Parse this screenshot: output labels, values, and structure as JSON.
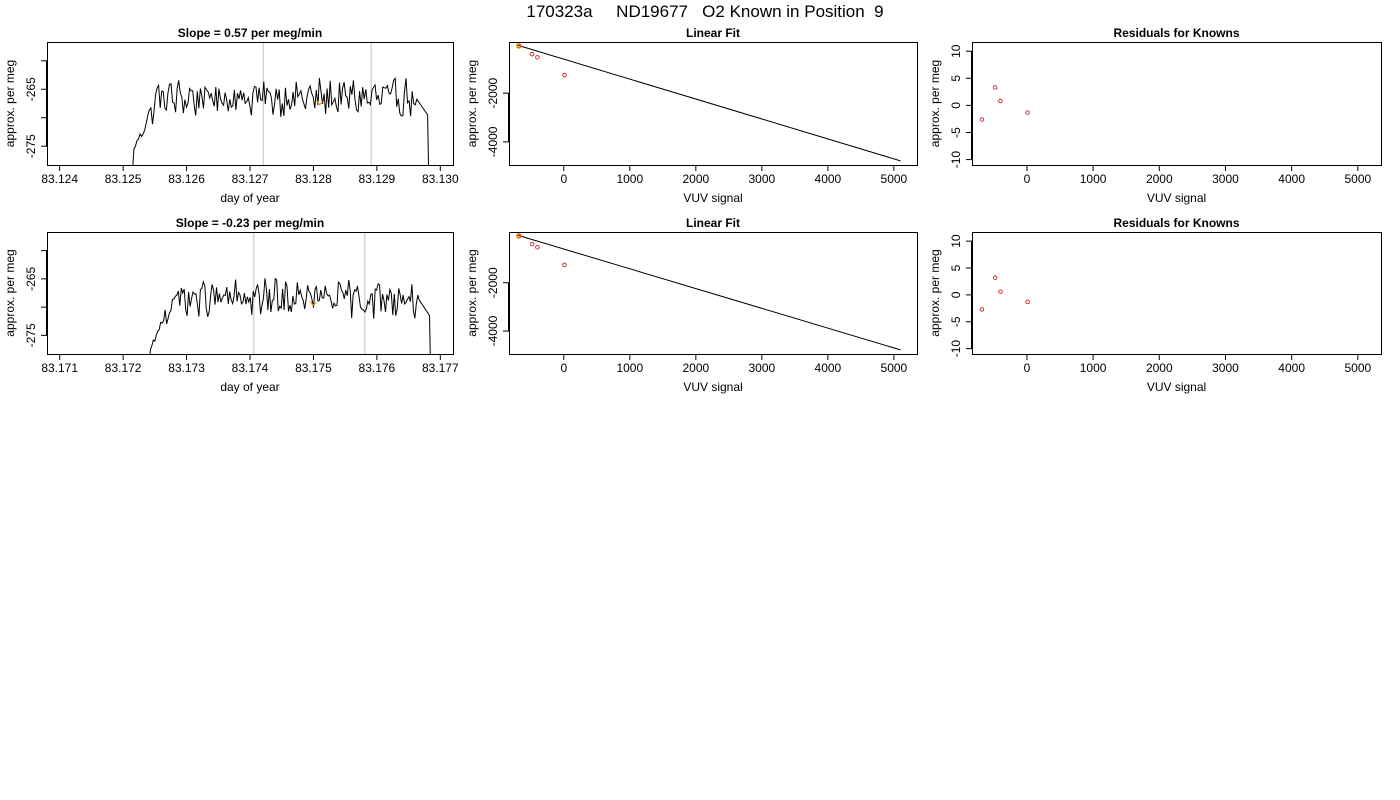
{
  "page": {
    "title": "170323a     ND19677   O2 Known in Position  9"
  },
  "colors": {
    "line": "#000000",
    "knowns": "#cc2222",
    "highlight": "#e69500",
    "window": "#cccccc"
  },
  "chart_data": [
    {
      "type": "line",
      "title": "Slope =  0.57  per meg/min",
      "xlabel": "day of year",
      "ylabel": "approx. per meg",
      "xlim": [
        83.1238,
        83.1302
      ],
      "ylim": [
        -278.3,
        -256.7
      ],
      "xticks": [
        83.124,
        83.125,
        83.126,
        83.127,
        83.128,
        83.129,
        83.13
      ],
      "xtick_labels": [
        "83.124",
        "83.125",
        "83.126",
        "83.127",
        "83.128",
        "83.129",
        "83.130"
      ],
      "yticks": [
        -260,
        -265,
        -270,
        -275
      ],
      "ytick_labels": [
        "",
        "-265",
        "",
        "-275"
      ],
      "vlines": [
        83.12721,
        83.12891
      ],
      "series_start": 83.12517,
      "series_end": 83.1298,
      "level": -266.5,
      "highlight_x": 83.12805
    },
    {
      "type": "scatter",
      "title": "Linear Fit",
      "xlabel": "VUV signal",
      "ylabel": "approx. per meg",
      "xlim": [
        -830,
        5350
      ],
      "ylim": [
        -4950,
        100
      ],
      "xticks": [
        0,
        1000,
        2000,
        3000,
        4000,
        5000
      ],
      "xtick_labels": [
        "0",
        "1000",
        "2000",
        "3000",
        "4000",
        "5000"
      ],
      "yticks": [
        -2000,
        -4000
      ],
      "ytick_labels": [
        "-2000",
        "-4000"
      ],
      "points": [
        {
          "x": -680,
          "y": -60
        },
        {
          "x": -480,
          "y": -400
        },
        {
          "x": -400,
          "y": -530
        },
        {
          "x": 10,
          "y": -1260
        }
      ],
      "highlight_x": -680,
      "fit_line": {
        "x": [
          -690,
          5100
        ],
        "y": [
          -40,
          -4780
        ]
      }
    },
    {
      "type": "scatter",
      "title": "Residuals for Knowns",
      "xlabel": "VUV signal",
      "ylabel": "approx. per meg",
      "xlim": [
        -830,
        5350
      ],
      "ylim": [
        -11,
        11.7
      ],
      "xticks": [
        0,
        1000,
        2000,
        3000,
        4000,
        5000
      ],
      "xtick_labels": [
        "0",
        "1000",
        "2000",
        "3000",
        "4000",
        "5000"
      ],
      "yticks": [
        10,
        5,
        0,
        -5,
        -10
      ],
      "ytick_labels": [
        "10",
        "5",
        "0",
        "-5",
        "-10"
      ],
      "points": [
        {
          "x": -680,
          "y": -2.6
        },
        {
          "x": -480,
          "y": 3.3
        },
        {
          "x": -400,
          "y": 0.8
        },
        {
          "x": 10,
          "y": -1.3
        }
      ]
    },
    {
      "type": "line",
      "title": "Slope =  -0.23  per meg/min",
      "xlabel": "day of year",
      "ylabel": "approx. per meg",
      "xlim": [
        83.1708,
        83.1772
      ],
      "ylim": [
        -278.3,
        -256.7
      ],
      "xticks": [
        83.171,
        83.172,
        83.173,
        83.174,
        83.175,
        83.176,
        83.177
      ],
      "xtick_labels": [
        "83.171",
        "83.172",
        "83.173",
        "83.174",
        "83.175",
        "83.176",
        "83.177"
      ],
      "yticks": [
        -260,
        -265,
        -270,
        -275
      ],
      "ytick_labels": [
        "",
        "-265",
        "",
        "-275"
      ],
      "vlines": [
        83.17406,
        83.17581
      ],
      "series_start": 83.17243,
      "series_end": 83.17683,
      "level": -268.5,
      "highlight_x": 83.17495
    },
    {
      "type": "scatter",
      "title": "Linear Fit",
      "xlabel": "VUV signal",
      "ylabel": "approx. per meg",
      "xlim": [
        -830,
        5350
      ],
      "ylim": [
        -4950,
        100
      ],
      "xticks": [
        0,
        1000,
        2000,
        3000,
        4000,
        5000
      ],
      "xtick_labels": [
        "0",
        "1000",
        "2000",
        "3000",
        "4000",
        "5000"
      ],
      "yticks": [
        -2000,
        -4000
      ],
      "ytick_labels": [
        "-2000",
        "-4000"
      ],
      "points": [
        {
          "x": -680,
          "y": -60
        },
        {
          "x": -480,
          "y": -400
        },
        {
          "x": -400,
          "y": -530
        },
        {
          "x": 10,
          "y": -1260
        }
      ],
      "highlight_x": -680,
      "fit_line": {
        "x": [
          -690,
          5100
        ],
        "y": [
          -40,
          -4780
        ]
      }
    },
    {
      "type": "scatter",
      "title": "Residuals for Knowns",
      "xlabel": "VUV signal",
      "ylabel": "approx. per meg",
      "xlim": [
        -830,
        5350
      ],
      "ylim": [
        -11,
        11.7
      ],
      "xticks": [
        0,
        1000,
        2000,
        3000,
        4000,
        5000
      ],
      "xtick_labels": [
        "0",
        "1000",
        "2000",
        "3000",
        "4000",
        "5000"
      ],
      "yticks": [
        10,
        5,
        0,
        -5,
        -10
      ],
      "ytick_labels": [
        "10",
        "5",
        "0",
        "-5",
        "-10"
      ],
      "points": [
        {
          "x": -680,
          "y": -2.7
        },
        {
          "x": -480,
          "y": 3.2
        },
        {
          "x": -400,
          "y": 0.6
        },
        {
          "x": 10,
          "y": -1.3
        }
      ]
    }
  ]
}
